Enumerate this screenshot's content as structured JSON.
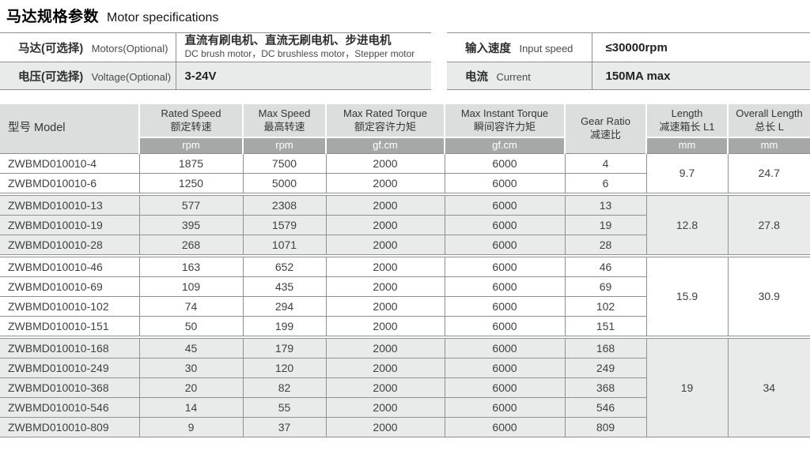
{
  "page": {
    "title_zh": "马达规格参数",
    "title_en": "Motor specifications"
  },
  "info_left": {
    "rows": [
      {
        "label_zh": "马达(可选择)",
        "label_en": "Motors(Optional)",
        "value_zh": "直流有刷电机、直流无刷电机、步进电机",
        "value_en": "DC brush motor，DC brushless motor，Stepper motor"
      },
      {
        "label_zh": "电压(可选择)",
        "label_en": "Voltage(Optional)",
        "value": "3-24V"
      }
    ]
  },
  "info_right": {
    "rows": [
      {
        "label_zh": "输入速度",
        "label_en": "Input speed",
        "value": "≤30000rpm"
      },
      {
        "label_zh": "电流",
        "label_en": "Current",
        "value": "150MA max"
      }
    ]
  },
  "table": {
    "model_header": "型号 Model",
    "columns": [
      {
        "en": "Rated Speed",
        "zh": "额定转速",
        "unit": "rpm"
      },
      {
        "en": "Max Speed",
        "zh": "最高转速",
        "unit": "rpm"
      },
      {
        "en": "Max Rated Torque",
        "zh": "额定容许力矩",
        "unit": "gf.cm"
      },
      {
        "en": "Max Instant Torque",
        "zh": "瞬间容许力矩",
        "unit": "gf.cm"
      },
      {
        "en": "Gear Ratio",
        "zh": "减速比",
        "unit": ""
      },
      {
        "en": "Length",
        "zh": "减速箱长 L1",
        "unit": "mm"
      },
      {
        "en": "Overall Length",
        "zh": "总长 L",
        "unit": "mm"
      }
    ],
    "groups": [
      {
        "shaded": false,
        "length_l1": "9.7",
        "overall_l": "24.7",
        "rows": [
          {
            "model": "ZWBMD010010-4",
            "rated": "1875",
            "max": "7500",
            "rated_torque": "2000",
            "instant_torque": "6000",
            "ratio": "4"
          },
          {
            "model": "ZWBMD010010-6",
            "rated": "1250",
            "max": "5000",
            "rated_torque": "2000",
            "instant_torque": "6000",
            "ratio": "6"
          }
        ]
      },
      {
        "shaded": true,
        "length_l1": "12.8",
        "overall_l": "27.8",
        "rows": [
          {
            "model": "ZWBMD010010-13",
            "rated": "577",
            "max": "2308",
            "rated_torque": "2000",
            "instant_torque": "6000",
            "ratio": "13"
          },
          {
            "model": "ZWBMD010010-19",
            "rated": "395",
            "max": "1579",
            "rated_torque": "2000",
            "instant_torque": "6000",
            "ratio": "19"
          },
          {
            "model": "ZWBMD010010-28",
            "rated": "268",
            "max": "1071",
            "rated_torque": "2000",
            "instant_torque": "6000",
            "ratio": "28"
          }
        ]
      },
      {
        "shaded": false,
        "length_l1": "15.9",
        "overall_l": "30.9",
        "rows": [
          {
            "model": "ZWBMD010010-46",
            "rated": "163",
            "max": "652",
            "rated_torque": "2000",
            "instant_torque": "6000",
            "ratio": "46"
          },
          {
            "model": "ZWBMD010010-69",
            "rated": "109",
            "max": "435",
            "rated_torque": "2000",
            "instant_torque": "6000",
            "ratio": "69"
          },
          {
            "model": "ZWBMD010010-102",
            "rated": "74",
            "max": "294",
            "rated_torque": "2000",
            "instant_torque": "6000",
            "ratio": "102"
          },
          {
            "model": "ZWBMD010010-151",
            "rated": "50",
            "max": "199",
            "rated_torque": "2000",
            "instant_torque": "6000",
            "ratio": "151"
          }
        ]
      },
      {
        "shaded": true,
        "length_l1": "19",
        "overall_l": "34",
        "rows": [
          {
            "model": "ZWBMD010010-168",
            "rated": "45",
            "max": "179",
            "rated_torque": "2000",
            "instant_torque": "6000",
            "ratio": "168"
          },
          {
            "model": "ZWBMD010010-249",
            "rated": "30",
            "max": "120",
            "rated_torque": "2000",
            "instant_torque": "6000",
            "ratio": "249"
          },
          {
            "model": "ZWBMD010010-368",
            "rated": "20",
            "max": "82",
            "rated_torque": "2000",
            "instant_torque": "6000",
            "ratio": "368"
          },
          {
            "model": "ZWBMD010010-546",
            "rated": "14",
            "max": "55",
            "rated_torque": "2000",
            "instant_torque": "6000",
            "ratio": "546"
          },
          {
            "model": "ZWBMD010010-809",
            "rated": "9",
            "max": "37",
            "rated_torque": "2000",
            "instant_torque": "6000",
            "ratio": "809"
          }
        ]
      }
    ]
  },
  "colors": {
    "header_bg": "#dcdddd",
    "units_bg": "#a6a7a7",
    "row_alt": "#e9eaea",
    "border_gray": "#8f9090"
  }
}
